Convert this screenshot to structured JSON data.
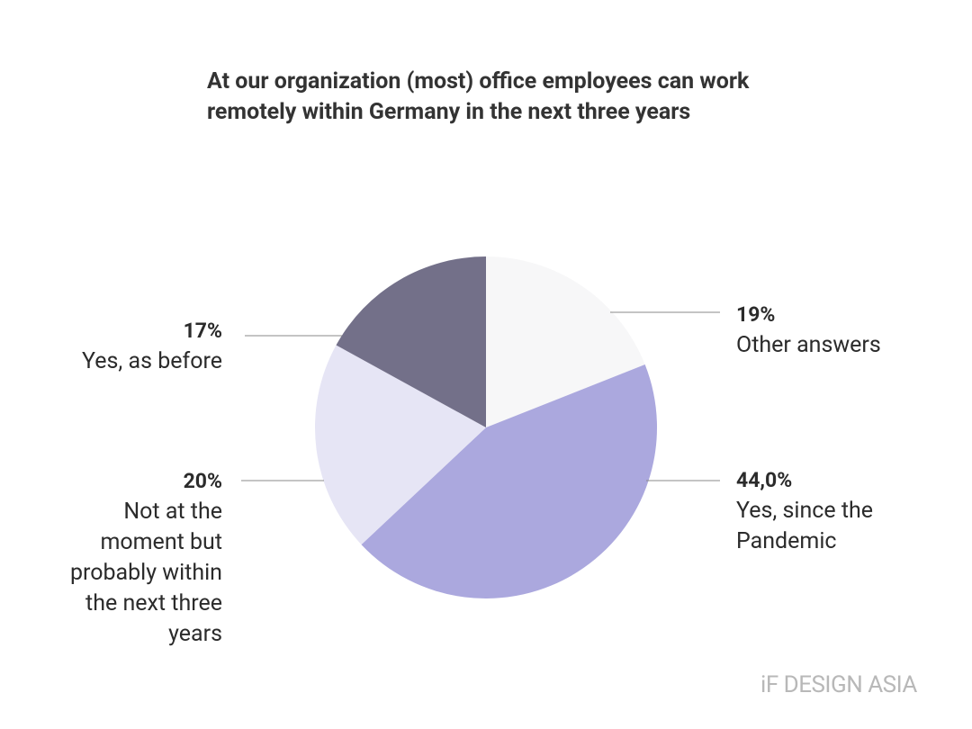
{
  "chart_data": {
    "type": "pie",
    "title": "At our organization (most) office employees can work remotely within Germany in the next three years",
    "categories": [
      "Other answers",
      "Yes, since the Pandemic",
      "Not at the moment but probably within the next three years",
      "Yes, as before"
    ],
    "values": [
      19,
      44.0,
      20,
      17
    ],
    "value_labels": [
      "19%",
      "44,0%",
      "20%",
      "17%"
    ],
    "colors": [
      "#f7f7f8",
      "#aba8de",
      "#e6e5f5",
      "#737089"
    ]
  },
  "watermark": "iF DESIGN ASIA"
}
